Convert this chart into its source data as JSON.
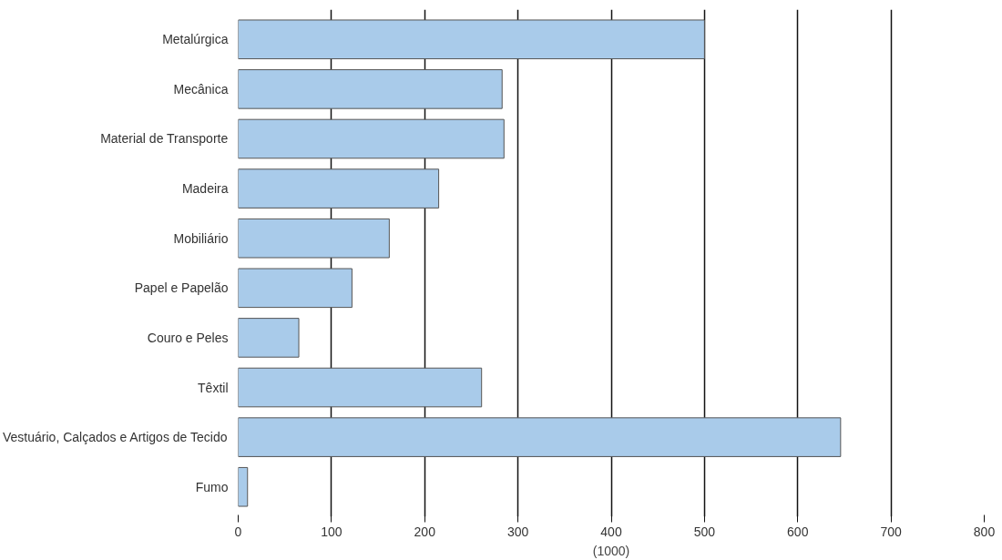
{
  "chart_data": {
    "type": "bar",
    "orientation": "horizontal",
    "xlabel": "(1000)",
    "categories": [
      "Metalúrgica",
      "Mecânica",
      "Material de Transporte",
      "Madeira",
      "Mobiliário",
      "Papel e Papelão",
      "Couro e Peles",
      "Têxtil",
      "Vestuário, Calçados e Artigos de Tecido",
      "Fumo"
    ],
    "values": [
      500,
      283,
      285,
      215,
      162,
      122,
      65,
      261,
      646,
      10
    ],
    "color": "#a9cbea",
    "xlim": [
      0,
      800
    ],
    "xticks": [
      0,
      100,
      200,
      300,
      400,
      500,
      600,
      700,
      800
    ],
    "grid": "x"
  }
}
